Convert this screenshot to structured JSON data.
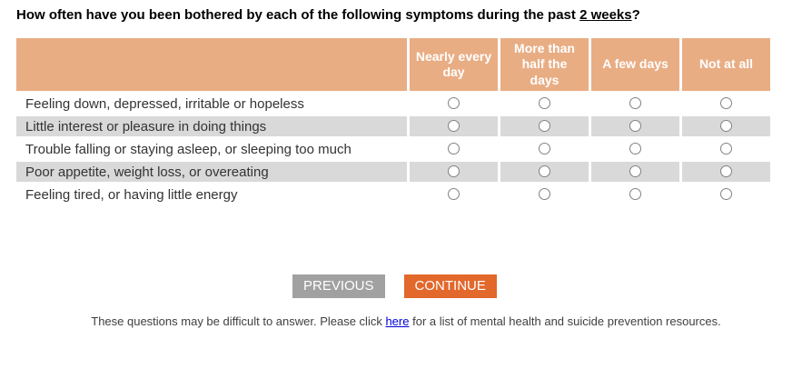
{
  "title": {
    "prefix": "How often have you been bothered by each of the following symptoms during the past ",
    "underlined": "2 weeks",
    "suffix": "?"
  },
  "table": {
    "header_labels": [
      "Nearly every day",
      "More than half the days",
      "A few days",
      "Not at all"
    ],
    "rows": [
      {
        "label": "Feeling down, depressed, irritable or hopeless"
      },
      {
        "label": "Little interest or pleasure in doing things"
      },
      {
        "label": "Trouble falling or staying asleep, or sleeping too much"
      },
      {
        "label": "Poor appetite, weight loss, or overeating"
      },
      {
        "label": "Feeling tired, or having little energy"
      }
    ]
  },
  "buttons": {
    "previous": "PREVIOUS",
    "continue": "CONTINUE"
  },
  "footer": {
    "prefix": "These questions may be difficult to answer. Please click ",
    "link": "here",
    "suffix": " for a list of mental health and suicide prevention resources."
  },
  "colors": {
    "header_bg": "#e9ad84",
    "row_alt_bg": "#d9d9d9",
    "previous_bg": "#a1a1a1",
    "continue_bg": "#e2682c",
    "link_color": "#0000dd"
  }
}
